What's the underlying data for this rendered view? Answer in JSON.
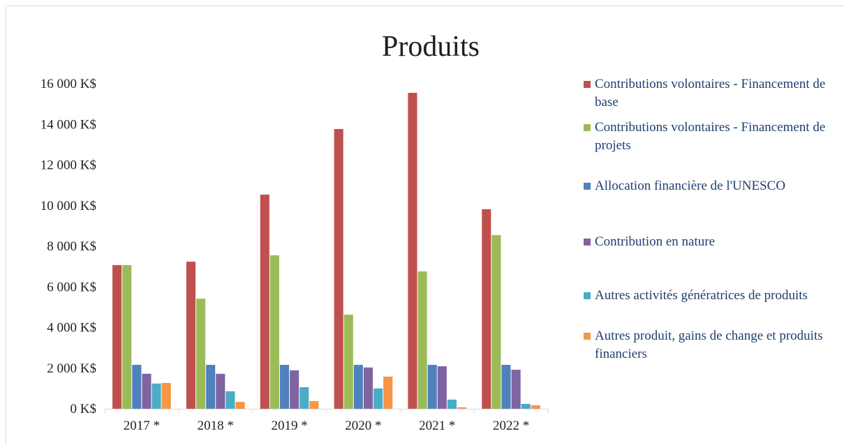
{
  "chart_data": {
    "type": "bar",
    "title": "Produits",
    "categories": [
      "2017 *",
      "2018 *",
      "2019 *",
      "2020 *",
      "2021 *",
      "2022 *"
    ],
    "series": [
      {
        "name": "Contributions volontaires - Financement de base",
        "color": "#c0504d",
        "values": [
          7070,
          7240,
          10540,
          13770,
          15550,
          9820
        ]
      },
      {
        "name": "Contributions volontaires - Financement de projets",
        "color": "#9bbb59",
        "values": [
          7070,
          5420,
          7550,
          4630,
          6760,
          8550
        ]
      },
      {
        "name": "Allocation financière de l'UNESCO",
        "color": "#4f81bd",
        "values": [
          2160,
          2160,
          2160,
          2160,
          2160,
          2160
        ]
      },
      {
        "name": "Contribution en nature",
        "color": "#8064a2",
        "values": [
          1720,
          1720,
          1890,
          2030,
          2090,
          1920
        ]
      },
      {
        "name": "Autres activités génératrices de produits",
        "color": "#4bacc6",
        "values": [
          1240,
          860,
          1060,
          1000,
          450,
          240
        ]
      },
      {
        "name": "Autres produit, gains de change et produits financiers",
        "color": "#f79646",
        "values": [
          1270,
          340,
          380,
          1580,
          70,
          170
        ]
      }
    ],
    "ylim": [
      0,
      16000
    ],
    "yticks": [
      {
        "value": 0,
        "label": "0 K$"
      },
      {
        "value": 2000,
        "label": "2 000 K$"
      },
      {
        "value": 4000,
        "label": "4 000 K$"
      },
      {
        "value": 6000,
        "label": "6 000 K$"
      },
      {
        "value": 8000,
        "label": "8 000 K$"
      },
      {
        "value": 10000,
        "label": "10 000 K$"
      },
      {
        "value": 12000,
        "label": "12 000 K$"
      },
      {
        "value": 14000,
        "label": "14 000 K$"
      },
      {
        "value": 16000,
        "label": "16 000 K$"
      }
    ],
    "legend": "right"
  }
}
